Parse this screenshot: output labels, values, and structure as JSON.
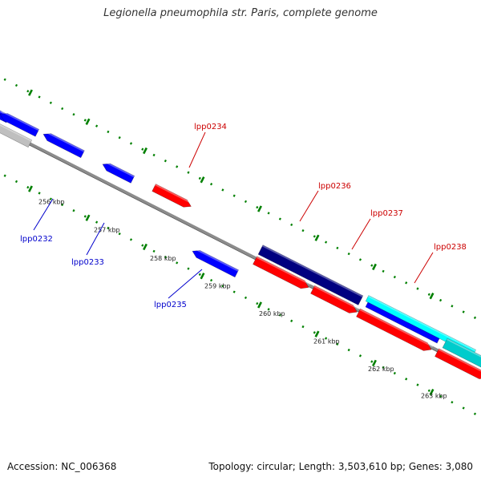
{
  "title": "Legionella pneumophila str. Paris, complete genome",
  "accession_text": "Accession: NC_006368",
  "summary_text": "Topology: circular; Length: 3,503,610 bp; Genes: 3,080",
  "colors": {
    "forward_gene": "#ff0000",
    "reverse_gene": "#0000ff",
    "dark_feature": "#000080",
    "cyan_feature": "#00ffff",
    "teal_feature": "#00cccc",
    "gray_feature": "#bfbfbf",
    "backbone": "#8c8c8c",
    "ticks": "#008000",
    "forward_label": "#cc0000",
    "reverse_label": "#0000cc"
  },
  "scale": {
    "unit": "kbp",
    "labels": [
      "256 kbp",
      "257 kbp",
      "258 kbp",
      "259 kbp",
      "260 kbp",
      "261 kbp",
      "262 kbp",
      "263 kbp"
    ]
  },
  "genes": [
    {
      "name": "lpp0232",
      "strand": "reverse",
      "labeled": true
    },
    {
      "name": "lpp0233",
      "strand": "reverse",
      "labeled": true
    },
    {
      "name": "lpp0234",
      "strand": "forward",
      "labeled": true
    },
    {
      "name": "lpp0235",
      "strand": "reverse",
      "labeled": true
    },
    {
      "name": "lpp0236",
      "strand": "forward",
      "labeled": true
    },
    {
      "name": "lpp0237",
      "strand": "forward",
      "labeled": true
    },
    {
      "name": "lpp0238",
      "strand": "forward",
      "labeled": true
    }
  ]
}
